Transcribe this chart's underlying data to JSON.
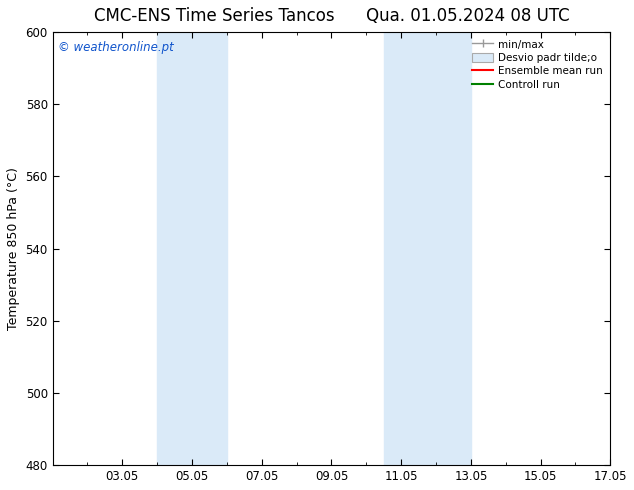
{
  "title": "CMC-ENS Time Series Tancos",
  "title2": "Qua. 01.05.2024 08 UTC",
  "ylabel": "Temperature 850 hPa (°C)",
  "ylim": [
    480,
    600
  ],
  "yticks": [
    480,
    500,
    520,
    540,
    560,
    580,
    600
  ],
  "xlim": [
    0,
    16
  ],
  "xtick_labels": [
    "03.05",
    "05.05",
    "07.05",
    "09.05",
    "11.05",
    "13.05",
    "15.05",
    "17.05"
  ],
  "xtick_positions": [
    2,
    4,
    6,
    8,
    10,
    12,
    14,
    16
  ],
  "shaded_bands": [
    {
      "x_start": 3,
      "x_end": 5
    },
    {
      "x_start": 9.5,
      "x_end": 12
    }
  ],
  "shaded_color": "#daeaf8",
  "watermark_text": "© weatheronline.pt",
  "watermark_color": "#1155cc",
  "legend_labels": [
    "min/max",
    "Desvio padr tilde;o",
    "Ensemble mean run",
    "Controll run"
  ],
  "legend_colors": [
    "#aaaaaa",
    "#daeaf8",
    "red",
    "green"
  ],
  "bg_color": "#ffffff",
  "plot_bg_color": "#ffffff",
  "spine_color": "#000000",
  "title_fontsize": 12,
  "label_fontsize": 9,
  "tick_fontsize": 8.5
}
